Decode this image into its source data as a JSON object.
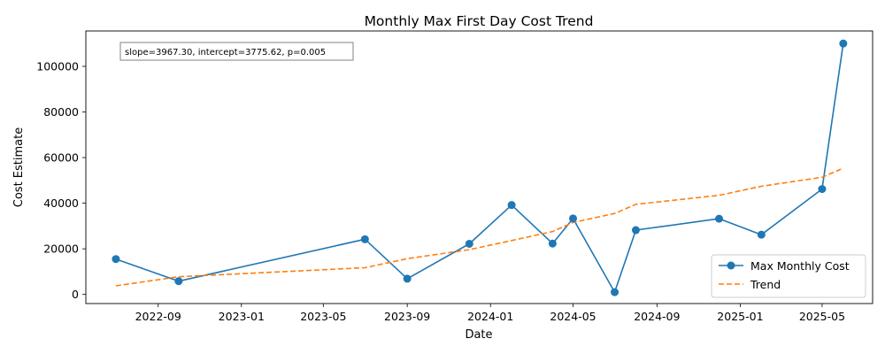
{
  "chart_data": {
    "type": "line",
    "title": "Monthly Max First Day Cost Trend",
    "xlabel": "Date",
    "ylabel": "Cost Estimate",
    "x_ticks": [
      "2022-09",
      "2023-01",
      "2023-05",
      "2023-09",
      "2024-01",
      "2024-05",
      "2024-09",
      "2025-01",
      "2025-05"
    ],
    "y_ticks": [
      0,
      20000,
      40000,
      60000,
      80000,
      100000
    ],
    "ylim": [
      -4000,
      115500
    ],
    "xlim": [
      "2022-05-18",
      "2025-07-14"
    ],
    "grid": false,
    "legend_position": "lower-right",
    "annotation": "slope=3967.30, intercept=3775.62, p=0.005",
    "series": [
      {
        "name": "Max Monthly Cost",
        "style": "solid-with-markers",
        "color": "#1f77b4",
        "points": [
          {
            "x": "2022-07-01",
            "y": 15500
          },
          {
            "x": "2022-10-01",
            "y": 5800
          },
          {
            "x": "2023-07-01",
            "y": 24200
          },
          {
            "x": "2023-09-01",
            "y": 6900
          },
          {
            "x": "2023-12-01",
            "y": 22200
          },
          {
            "x": "2024-02-01",
            "y": 39200
          },
          {
            "x": "2024-04-01",
            "y": 22300
          },
          {
            "x": "2024-05-01",
            "y": 33300
          },
          {
            "x": "2024-07-01",
            "y": 1000
          },
          {
            "x": "2024-08-01",
            "y": 28200
          },
          {
            "x": "2024-12-01",
            "y": 33200
          },
          {
            "x": "2025-02-01",
            "y": 26200
          },
          {
            "x": "2025-05-01",
            "y": 46200
          },
          {
            "x": "2025-06-01",
            "y": 110000
          }
        ]
      },
      {
        "name": "Trend",
        "style": "dashed",
        "color": "#ff7f0e",
        "points": [
          {
            "x": "2022-07-01",
            "y": 3776
          },
          {
            "x": "2022-10-01",
            "y": 7743
          },
          {
            "x": "2023-07-01",
            "y": 11710
          },
          {
            "x": "2023-09-01",
            "y": 15678
          },
          {
            "x": "2023-12-01",
            "y": 19645
          },
          {
            "x": "2024-02-01",
            "y": 23612
          },
          {
            "x": "2024-04-01",
            "y": 27580
          },
          {
            "x": "2024-05-01",
            "y": 31547
          },
          {
            "x": "2024-07-01",
            "y": 35514
          },
          {
            "x": "2024-08-01",
            "y": 39482
          },
          {
            "x": "2024-12-01",
            "y": 43449
          },
          {
            "x": "2025-02-01",
            "y": 47416
          },
          {
            "x": "2025-05-01",
            "y": 51383
          },
          {
            "x": "2025-06-01",
            "y": 55351
          }
        ]
      }
    ]
  }
}
